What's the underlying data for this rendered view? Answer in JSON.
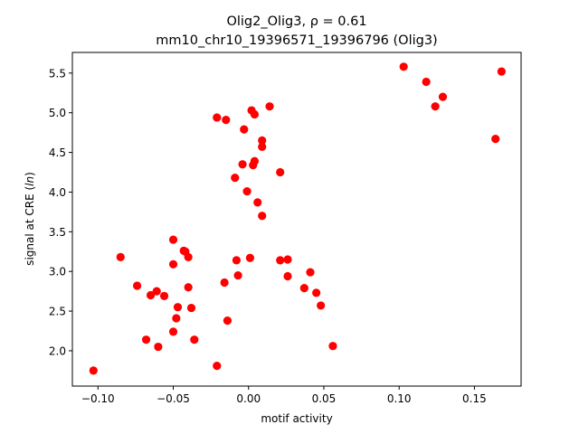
{
  "chart_data": {
    "type": "scatter",
    "title_line1": "Olig2_Olig3, ρ = 0.61",
    "title_line2": "mm10_chr10_19396571_19396796 (Olig3)",
    "xlabel": "motif activity",
    "ylabel_prefix": "signal at CRE (",
    "ylabel_italic": "ln",
    "ylabel_suffix": ")",
    "xlim": [
      -0.117,
      0.181
    ],
    "ylim": [
      1.555,
      5.76
    ],
    "xticks": [
      -0.1,
      -0.05,
      0.0,
      0.05,
      0.1,
      0.15
    ],
    "xtick_labels": [
      "−0.10",
      "−0.05",
      "0.00",
      "0.05",
      "0.10",
      "0.15"
    ],
    "yticks": [
      2.0,
      2.5,
      3.0,
      3.5,
      4.0,
      4.5,
      5.0,
      5.5
    ],
    "ytick_labels": [
      "2.0",
      "2.5",
      "3.0",
      "3.5",
      "4.0",
      "4.5",
      "5.0",
      "5.5"
    ],
    "grid": false,
    "marker_color": "#ff0000",
    "points": [
      {
        "x": -0.103,
        "y": 1.75
      },
      {
        "x": -0.085,
        "y": 3.18
      },
      {
        "x": -0.074,
        "y": 2.82
      },
      {
        "x": -0.068,
        "y": 2.14
      },
      {
        "x": -0.065,
        "y": 2.7
      },
      {
        "x": -0.061,
        "y": 2.75
      },
      {
        "x": -0.06,
        "y": 2.05
      },
      {
        "x": -0.056,
        "y": 2.69
      },
      {
        "x": -0.05,
        "y": 3.4
      },
      {
        "x": -0.05,
        "y": 3.09
      },
      {
        "x": -0.05,
        "y": 2.24
      },
      {
        "x": -0.048,
        "y": 2.41
      },
      {
        "x": -0.047,
        "y": 2.55
      },
      {
        "x": -0.043,
        "y": 3.26
      },
      {
        "x": -0.042,
        "y": 3.25
      },
      {
        "x": -0.04,
        "y": 3.18
      },
      {
        "x": -0.04,
        "y": 2.8
      },
      {
        "x": -0.038,
        "y": 2.54
      },
      {
        "x": -0.036,
        "y": 2.14
      },
      {
        "x": -0.021,
        "y": 1.81
      },
      {
        "x": -0.021,
        "y": 4.94
      },
      {
        "x": -0.016,
        "y": 2.86
      },
      {
        "x": -0.015,
        "y": 4.91
      },
      {
        "x": -0.014,
        "y": 2.38
      },
      {
        "x": -0.009,
        "y": 4.18
      },
      {
        "x": -0.008,
        "y": 3.14
      },
      {
        "x": -0.007,
        "y": 2.95
      },
      {
        "x": -0.004,
        "y": 4.35
      },
      {
        "x": -0.003,
        "y": 4.79
      },
      {
        "x": -0.001,
        "y": 4.01
      },
      {
        "x": 0.001,
        "y": 3.17
      },
      {
        "x": 0.002,
        "y": 5.03
      },
      {
        "x": 0.003,
        "y": 4.34
      },
      {
        "x": 0.004,
        "y": 4.39
      },
      {
        "x": 0.004,
        "y": 4.98
      },
      {
        "x": 0.006,
        "y": 3.87
      },
      {
        "x": 0.009,
        "y": 4.57
      },
      {
        "x": 0.009,
        "y": 4.65
      },
      {
        "x": 0.009,
        "y": 3.7
      },
      {
        "x": 0.014,
        "y": 5.08
      },
      {
        "x": 0.021,
        "y": 3.14
      },
      {
        "x": 0.021,
        "y": 4.25
      },
      {
        "x": 0.026,
        "y": 3.15
      },
      {
        "x": 0.026,
        "y": 2.94
      },
      {
        "x": 0.037,
        "y": 2.79
      },
      {
        "x": 0.041,
        "y": 2.99
      },
      {
        "x": 0.045,
        "y": 2.73
      },
      {
        "x": 0.048,
        "y": 2.57
      },
      {
        "x": 0.056,
        "y": 2.06
      },
      {
        "x": 0.103,
        "y": 5.58
      },
      {
        "x": 0.118,
        "y": 5.39
      },
      {
        "x": 0.124,
        "y": 5.08
      },
      {
        "x": 0.129,
        "y": 5.2
      },
      {
        "x": 0.164,
        "y": 4.67
      },
      {
        "x": 0.168,
        "y": 5.52
      }
    ]
  }
}
